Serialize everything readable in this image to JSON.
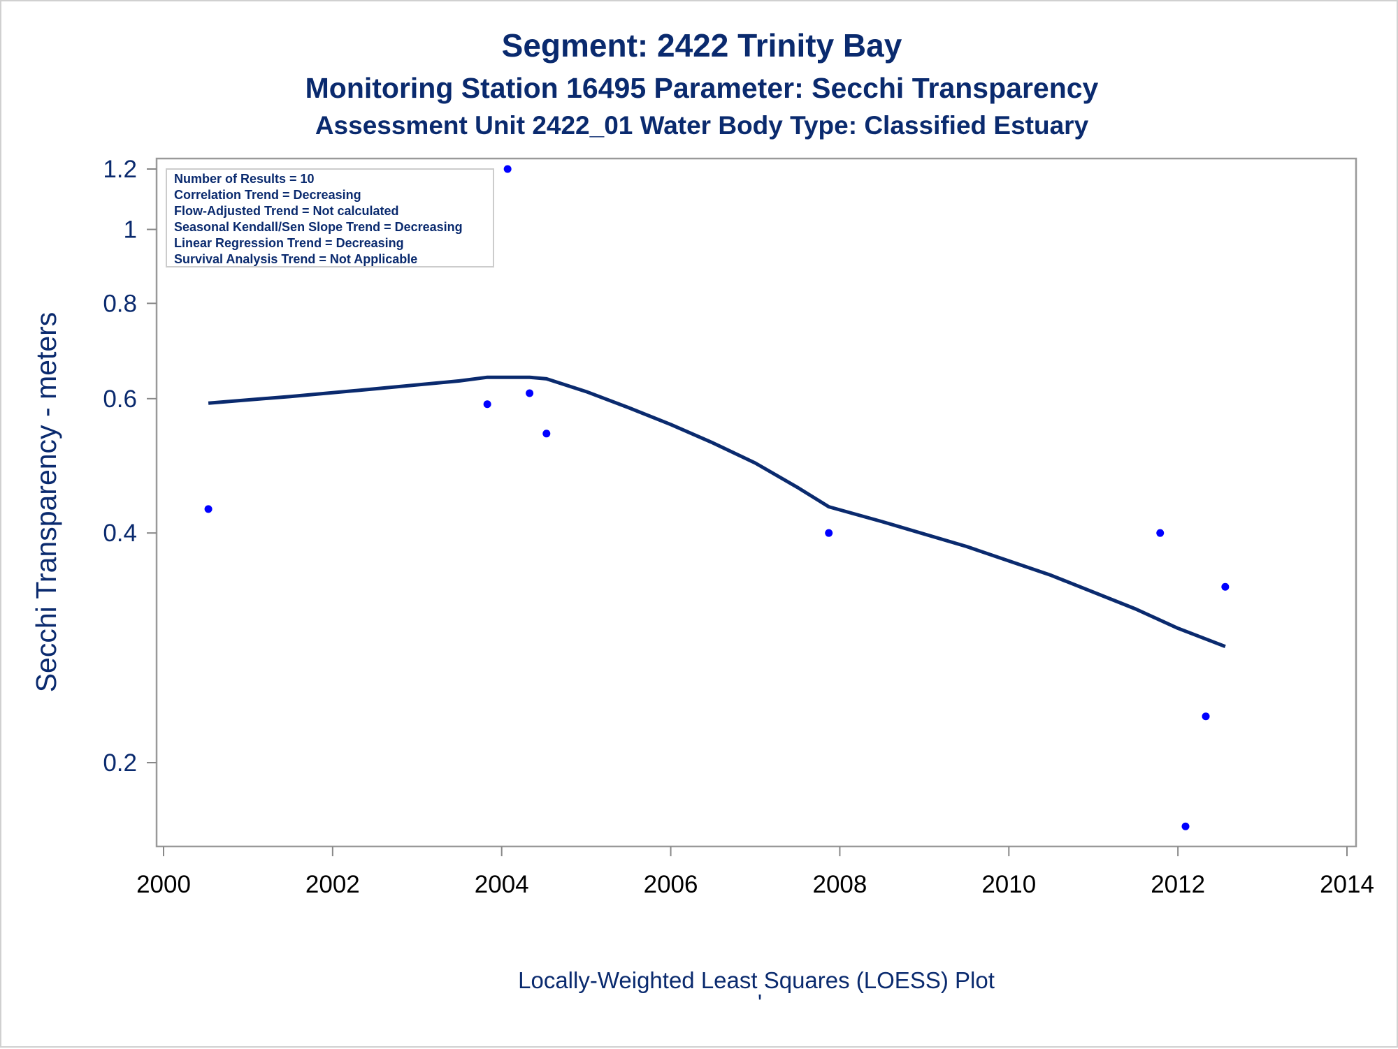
{
  "chart_data": {
    "type": "scatter",
    "title": "Segment: 2422  Trinity Bay",
    "subtitle": "Monitoring Station 16495 Parameter: Secchi Transparency",
    "subtitle2": "Assessment Unit 2422_01   Water Body Type: Classified Estuary",
    "xlabel": "",
    "ylabel": "Secchi Transparency - meters",
    "footnote": "Locally-Weighted Least Squares (LOESS) Plot",
    "footnote_mark": "'",
    "xlim": [
      2000,
      2014
    ],
    "ylim": [
      0.16,
      1.24
    ],
    "yscale": "log",
    "xticks": [
      2000,
      2002,
      2004,
      2006,
      2008,
      2010,
      2012,
      2014
    ],
    "xtick_labels": [
      "2000",
      "2002",
      "2004",
      "2006",
      "2008",
      "2010",
      "2012",
      "2014"
    ],
    "yticks": [
      0.2,
      0.4,
      0.6,
      0.8,
      1.0,
      1.2
    ],
    "ytick_labels": [
      "0.2",
      "0.4",
      "0.6",
      "0.8",
      "1",
      "1.2"
    ],
    "grid": false,
    "stats_box": {
      "placement": "top-left",
      "lines": [
        "Number of Results = 10",
        "Correlation Trend = Decreasing",
        "Flow-Adjusted Trend = Not calculated",
        "Seasonal Kendall/Sen Slope Trend = Decreasing",
        "Linear Regression Trend = Decreasing",
        "Survival Analysis Trend = Not Applicable"
      ]
    },
    "series": [
      {
        "kind": "points",
        "color": "#0000ff",
        "x": [
          2000.53,
          2003.83,
          2004.07,
          2004.33,
          2004.53,
          2007.87,
          2011.79,
          2012.09,
          2012.33,
          2012.56
        ],
        "y": [
          0.43,
          0.59,
          1.2,
          0.61,
          0.54,
          0.4,
          0.4,
          0.165,
          0.23,
          0.34
        ]
      },
      {
        "kind": "loess-line",
        "color": "#0a2a6e",
        "x": [
          2000.53,
          2001.5,
          2002.5,
          2003.5,
          2003.83,
          2004.33,
          2004.53,
          2005.0,
          2005.5,
          2006.0,
          2006.5,
          2007.0,
          2007.5,
          2007.87,
          2008.5,
          2009.5,
          2010.5,
          2011.5,
          2012.0,
          2012.56
        ],
        "y": [
          0.592,
          0.604,
          0.618,
          0.633,
          0.64,
          0.64,
          0.637,
          0.613,
          0.584,
          0.555,
          0.525,
          0.494,
          0.459,
          0.433,
          0.414,
          0.384,
          0.352,
          0.318,
          0.3,
          0.284
        ]
      }
    ]
  }
}
